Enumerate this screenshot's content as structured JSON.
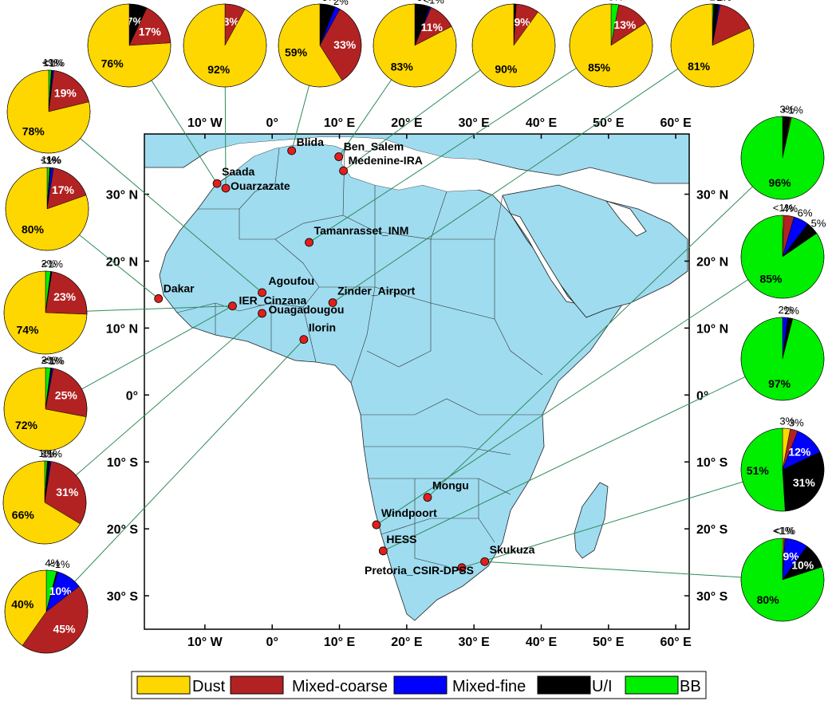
{
  "colors": {
    "dust": "#FFD700",
    "mixed_coarse": "#B22222",
    "mixed_fine": "#0000FF",
    "ui": "#000000",
    "bb": "#00EE00",
    "land": "#9FDCF0",
    "connector": "#2E8B57",
    "site": "#E0201B"
  },
  "map": {
    "lon_ticks": [
      "10° W",
      "0°",
      "10° E",
      "20° E",
      "30° E",
      "40° E",
      "50° E",
      "60° E"
    ],
    "lat_ticks": [
      "30° N",
      "20° N",
      "10° N",
      "0°",
      "10° S",
      "20° S",
      "30° S"
    ],
    "lon_range": [
      -19,
      62
    ],
    "lat_range": [
      -35,
      39
    ]
  },
  "stations": [
    {
      "name": "Saada",
      "lon": -8.2,
      "lat": 31.6
    },
    {
      "name": "Ouarzazate",
      "lon": -6.9,
      "lat": 30.9
    },
    {
      "name": "Blida",
      "lon": 2.9,
      "lat": 36.5
    },
    {
      "name": "Ben_Salem",
      "lon": 9.9,
      "lat": 35.6
    },
    {
      "name": "Medenine-IRA",
      "lon": 10.6,
      "lat": 33.5
    },
    {
      "name": "Tamanrasset_INM",
      "lon": 5.5,
      "lat": 22.8
    },
    {
      "name": "Dakar",
      "lon": -16.9,
      "lat": 14.4
    },
    {
      "name": "Agoufou",
      "lon": -1.5,
      "lat": 15.3
    },
    {
      "name": "IER_Cinzana",
      "lon": -5.9,
      "lat": 13.3
    },
    {
      "name": "Ouagadougou",
      "lon": -1.5,
      "lat": 12.2
    },
    {
      "name": "Zinder_Airport",
      "lon": 9.0,
      "lat": 13.8
    },
    {
      "name": "Ilorin",
      "lon": 4.7,
      "lat": 8.3
    },
    {
      "name": "Mongu",
      "lon": 23.1,
      "lat": -15.3
    },
    {
      "name": "Windpoort",
      "lon": 15.5,
      "lat": -19.4
    },
    {
      "name": "HESS",
      "lon": 16.5,
      "lat": -23.3
    },
    {
      "name": "Pretoria_CSIR-DPSS",
      "lon": 28.2,
      "lat": -25.8
    },
    {
      "name": "Skukuza",
      "lon": 31.6,
      "lat": -24.9
    }
  ],
  "pie_charts": [
    {
      "station": "Saada",
      "slices": [
        {
          "class": "dust",
          "value": 76,
          "label": "76%"
        },
        {
          "class": "mixed_coarse",
          "value": 17,
          "label": "17%"
        },
        {
          "class": "ui",
          "value": 7,
          "label": "7%"
        }
      ]
    },
    {
      "station": "Ouarzazate",
      "slices": [
        {
          "class": "dust",
          "value": 92,
          "label": "92%"
        },
        {
          "class": "mixed_coarse",
          "value": 8,
          "label": "8%"
        }
      ]
    },
    {
      "station": "Blida",
      "slices": [
        {
          "class": "dust",
          "value": 59,
          "label": "59%"
        },
        {
          "class": "mixed_coarse",
          "value": 33,
          "label": "33%"
        },
        {
          "class": "mixed_fine",
          "value": 2,
          "label": "2%"
        },
        {
          "class": "ui",
          "value": 6,
          "label": "6%"
        }
      ]
    },
    {
      "station": "Ben_Salem",
      "slices": [
        {
          "class": "dust",
          "value": 83,
          "label": "83%"
        },
        {
          "class": "mixed_coarse",
          "value": 11,
          "label": "11%"
        },
        {
          "class": "mixed_fine",
          "value": 0.5,
          "label": "<1%"
        },
        {
          "class": "ui",
          "value": 6,
          "label": "6%"
        }
      ]
    },
    {
      "station": "Medenine-IRA",
      "slices": [
        {
          "class": "dust",
          "value": 90,
          "label": "90%"
        },
        {
          "class": "mixed_coarse",
          "value": 9,
          "label": "9%"
        },
        {
          "class": "ui",
          "value": 1,
          "label": "1%"
        }
      ]
    },
    {
      "station": "Tamanrasset_INM",
      "slices": [
        {
          "class": "dust",
          "value": 85,
          "label": "85%"
        },
        {
          "class": "mixed_coarse",
          "value": 13,
          "label": "13%"
        },
        {
          "class": "bb",
          "value": 3,
          "label": "3%"
        }
      ]
    },
    {
      "station": "Zinder_Airport",
      "slices": [
        {
          "class": "dust",
          "value": 81,
          "label": "81%"
        },
        {
          "class": "mixed_coarse",
          "value": 15
        },
        {
          "class": "mixed_fine",
          "value": 0.5,
          "label": "<1%"
        },
        {
          "class": "ui",
          "value": 2,
          "label": "2%"
        },
        {
          "class": "bb",
          "value": 0.5,
          "label": "<1%"
        }
      ]
    },
    {
      "station": "Agoufou",
      "slices": [
        {
          "class": "dust",
          "value": 78,
          "label": "78%"
        },
        {
          "class": "mixed_coarse",
          "value": 19,
          "label": "19%"
        },
        {
          "class": "mixed_fine",
          "value": 0.5,
          "label": "<1%"
        },
        {
          "class": "ui",
          "value": 0.5,
          "label": "<1%"
        },
        {
          "class": "bb",
          "value": 1,
          "label": "1%"
        }
      ]
    },
    {
      "station": "Dakar",
      "slices": [
        {
          "class": "dust",
          "value": 80,
          "label": "80%"
        },
        {
          "class": "mixed_coarse",
          "value": 17,
          "label": "17%"
        },
        {
          "class": "mixed_fine",
          "value": 1,
          "label": "1%"
        },
        {
          "class": "ui",
          "value": 0.5,
          "label": "<1%"
        },
        {
          "class": "bb",
          "value": 1,
          "label": "1%"
        }
      ]
    },
    {
      "station": "IER_Cinzana",
      "slices": [
        {
          "class": "dust",
          "value": 74,
          "label": "74%"
        },
        {
          "class": "mixed_coarse",
          "value": 23,
          "label": "23%"
        },
        {
          "class": "ui",
          "value": 0.5,
          "label": "<1%"
        },
        {
          "class": "bb",
          "value": 2,
          "label": "2%"
        }
      ]
    },
    {
      "station": "Ouagadougou",
      "slices": [
        {
          "class": "dust",
          "value": 72,
          "label": "72%"
        },
        {
          "class": "mixed_coarse",
          "value": 25,
          "label": "25%"
        },
        {
          "class": "mixed_fine",
          "value": 0.5,
          "label": "<1%"
        },
        {
          "class": "ui",
          "value": 0.5,
          "label": "<1%"
        },
        {
          "class": "bb",
          "value": 2,
          "label": "2%"
        }
      ]
    },
    {
      "station": "Ilorin_66",
      "slices": [
        {
          "class": "dust",
          "value": 66,
          "label": "66%"
        },
        {
          "class": "mixed_coarse",
          "value": 31,
          "label": "31%"
        },
        {
          "class": "mixed_fine",
          "value": 0.5,
          "label": "<1%"
        },
        {
          "class": "ui",
          "value": 1,
          "label": "1%"
        },
        {
          "class": "bb",
          "value": 1,
          "label": "1%"
        }
      ]
    },
    {
      "station": "Ilorin",
      "slices": [
        {
          "class": "dust",
          "value": 40,
          "label": "40%"
        },
        {
          "class": "mixed_coarse",
          "value": 45,
          "label": "45%"
        },
        {
          "class": "mixed_fine",
          "value": 10,
          "label": "10%"
        },
        {
          "class": "ui",
          "value": 0.5,
          "label": "<1%"
        },
        {
          "class": "bb",
          "value": 4,
          "label": "4%"
        }
      ]
    },
    {
      "station": "Mongu",
      "slices": [
        {
          "class": "bb",
          "value": 96,
          "label": "96%"
        },
        {
          "class": "mixed_coarse",
          "value": 0.5,
          "label": "<1%"
        },
        {
          "class": "ui",
          "value": 3,
          "label": "3%"
        }
      ]
    },
    {
      "station": "Windpoort",
      "slices": [
        {
          "class": "bb",
          "value": 85,
          "label": "85%"
        },
        {
          "class": "ui",
          "value": 5,
          "label": "5%"
        },
        {
          "class": "mixed_fine",
          "value": 6,
          "label": "6%"
        },
        {
          "class": "mixed_coarse",
          "value": 4,
          "label": "4%"
        },
        {
          "class": "dust",
          "value": 0.5,
          "label": "<1%"
        }
      ]
    },
    {
      "station": "HESS",
      "slices": [
        {
          "class": "bb",
          "value": 97,
          "label": "97%"
        },
        {
          "class": "ui",
          "value": 2,
          "label": "2%"
        },
        {
          "class": "mixed_fine",
          "value": 2,
          "label": "2%"
        }
      ]
    },
    {
      "station": "Pretoria_CSIR-DPSS",
      "slices": [
        {
          "class": "bb",
          "value": 51,
          "label": "51%"
        },
        {
          "class": "ui",
          "value": 31,
          "label": "31%"
        },
        {
          "class": "mixed_fine",
          "value": 12,
          "label": "12%"
        },
        {
          "class": "mixed_coarse",
          "value": 3,
          "label": "3%"
        },
        {
          "class": "dust",
          "value": 3,
          "label": "3%"
        }
      ]
    },
    {
      "station": "Skukuza",
      "slices": [
        {
          "class": "bb",
          "value": 80,
          "label": "80%"
        },
        {
          "class": "ui",
          "value": 10,
          "label": "10%"
        },
        {
          "class": "mixed_fine",
          "value": 9,
          "label": "9%"
        },
        {
          "class": "mixed_coarse",
          "value": 0.5,
          "label": "<1%"
        },
        {
          "class": "dust",
          "value": 0.5,
          "label": "<1%"
        }
      ]
    }
  ],
  "legend": {
    "items": [
      {
        "class": "dust",
        "label": "Dust"
      },
      {
        "class": "mixed_coarse",
        "label": "Mixed-coarse"
      },
      {
        "class": "mixed_fine",
        "label": "Mixed-fine"
      },
      {
        "class": "ui",
        "label": "U/I"
      },
      {
        "class": "bb",
        "label": "BB"
      }
    ]
  }
}
